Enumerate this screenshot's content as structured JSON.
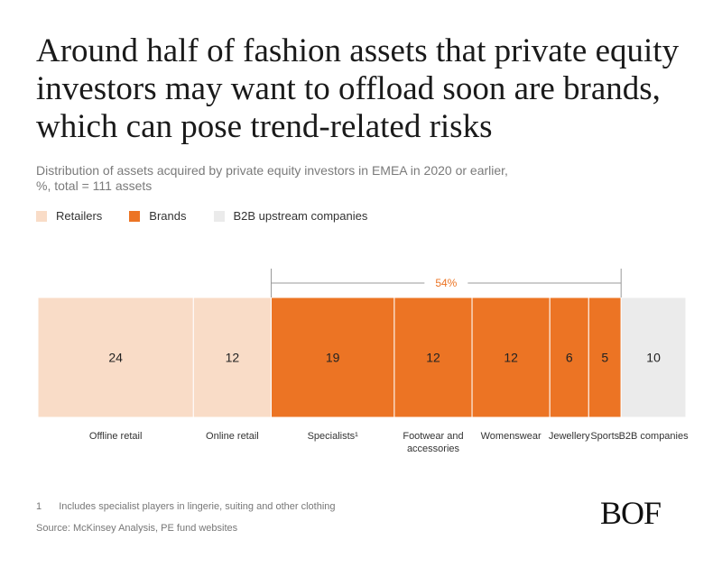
{
  "title": "Around half of fashion assets that private equity investors may want to offload soon are brands, which can pose trend-related risks",
  "subtitle_line1": "Distribution of assets acquired by private equity investors in EMEA in 2020 or earlier,",
  "subtitle_line2": "%, total = 111 assets",
  "legend": [
    {
      "label": "Retailers",
      "color": "#f9dcc7"
    },
    {
      "label": "Brands",
      "color": "#ec7424"
    },
    {
      "label": "B2B upstream companies",
      "color": "#ebebeb"
    }
  ],
  "chart_data": {
    "type": "bar",
    "orientation": "horizontal-stacked-100",
    "total_label": "54%",
    "total_label_group": "Brands",
    "segments": [
      {
        "label": "Offline retail",
        "value": 24,
        "group": "Retailers"
      },
      {
        "label": "Online retail",
        "value": 12,
        "group": "Retailers"
      },
      {
        "label": "Specialists¹",
        "value": 19,
        "group": "Brands"
      },
      {
        "label": "Footwear and accessories",
        "value": 12,
        "group": "Brands"
      },
      {
        "label": "Womenswear",
        "value": 12,
        "group": "Brands"
      },
      {
        "label": "Jewellery",
        "value": 6,
        "group": "Brands"
      },
      {
        "label": "Sports",
        "value": 5,
        "group": "Brands"
      },
      {
        "label": "B2B companies",
        "value": 10,
        "group": "B2B upstream companies"
      }
    ]
  },
  "footnote_number": "1",
  "footnote_text": "Includes specialist players in lingerie, suiting and other clothing",
  "source": "Source: McKinsey Analysis, PE fund websites",
  "logo_text": "BOF"
}
